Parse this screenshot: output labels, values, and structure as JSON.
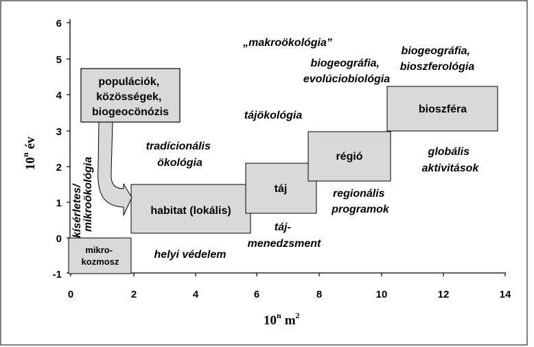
{
  "axes": {
    "x_ticks": [
      "0",
      "2",
      "4",
      "6",
      "8",
      "10",
      "12",
      "14"
    ],
    "y_ticks": [
      "6",
      "5",
      "4",
      "3",
      "2",
      "1",
      "0",
      "-1"
    ],
    "x_label_base": "10",
    "x_label_exp": "n",
    "x_label_unit": "m",
    "x_label_unit_exp": "2",
    "y_label_base": "10",
    "y_label_exp": "n",
    "y_label_unit": "év"
  },
  "boxes": {
    "mikrokozmosz": [
      "mikro-",
      "kozmosz"
    ],
    "habitat": "habitat (lokális)",
    "taj": "táj",
    "regio": "régió",
    "bioszfera": "bioszféra",
    "populaciok": [
      "populációk,",
      "közösségek,",
      "biogeocönózis"
    ]
  },
  "annotations": {
    "kiserletes": "kísérletes/",
    "mikrookologia": "mikroökológia",
    "tradicionalis": [
      "tradícionális",
      "ökológia"
    ],
    "helyi": "helyi védelem",
    "tajokologia": "tájökológia",
    "tajmened": [
      "táj-",
      "menedzsment"
    ],
    "makro": "„makroökológia”",
    "biogeo_evol": [
      "biogeográfia,",
      "evolúciobiológia"
    ],
    "regionalis": [
      "regionális",
      "programok"
    ],
    "biogeo_biosz": [
      "biogeográfia,",
      "bioszferológia"
    ],
    "globalis": [
      "globális",
      "aktivitások"
    ]
  },
  "colors": {
    "box_fill": "#d9d9d9",
    "stroke": "#000000",
    "frame": "#000000"
  }
}
